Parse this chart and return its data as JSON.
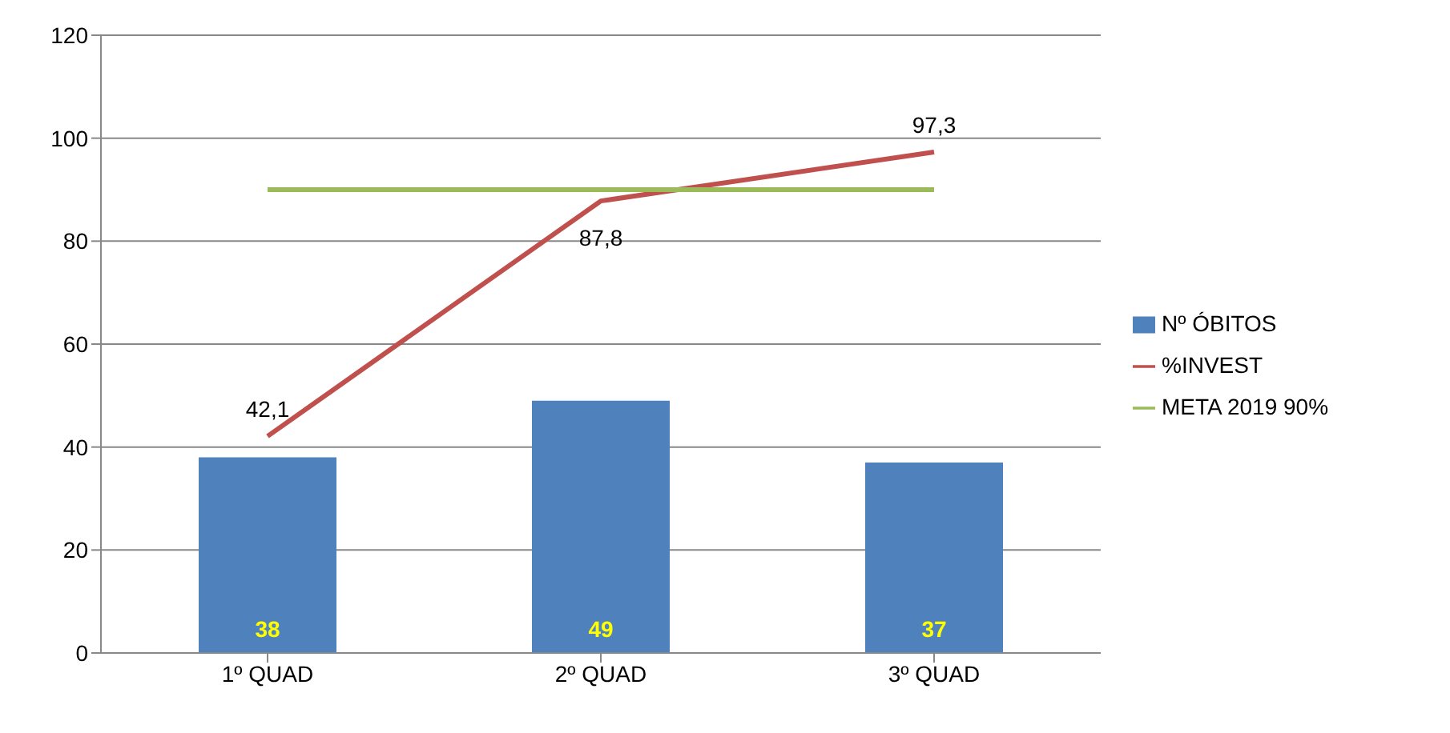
{
  "chart_data": {
    "type": "bar",
    "categories": [
      "1º QUAD",
      "2º QUAD",
      "3º QUAD"
    ],
    "series": [
      {
        "name": "Nº ÓBITOS",
        "color": "#4f81bd",
        "values": [
          38,
          49,
          37
        ],
        "value_labels": [
          "38",
          "49",
          "37"
        ]
      },
      {
        "name": "%INVEST",
        "type": "line",
        "color": "#c0504d",
        "values": [
          42.1,
          87.8,
          97.3
        ],
        "value_labels": [
          "42,1",
          "87,8",
          "97,3"
        ]
      },
      {
        "name": "META 2019 90%",
        "type": "line",
        "color": "#9bbb59",
        "values": [
          90,
          90,
          90
        ]
      }
    ],
    "ylim": [
      0,
      120
    ],
    "yticks": [
      0,
      20,
      40,
      60,
      80,
      100,
      120
    ],
    "grid": "y",
    "legend": "right",
    "marker": "none"
  }
}
